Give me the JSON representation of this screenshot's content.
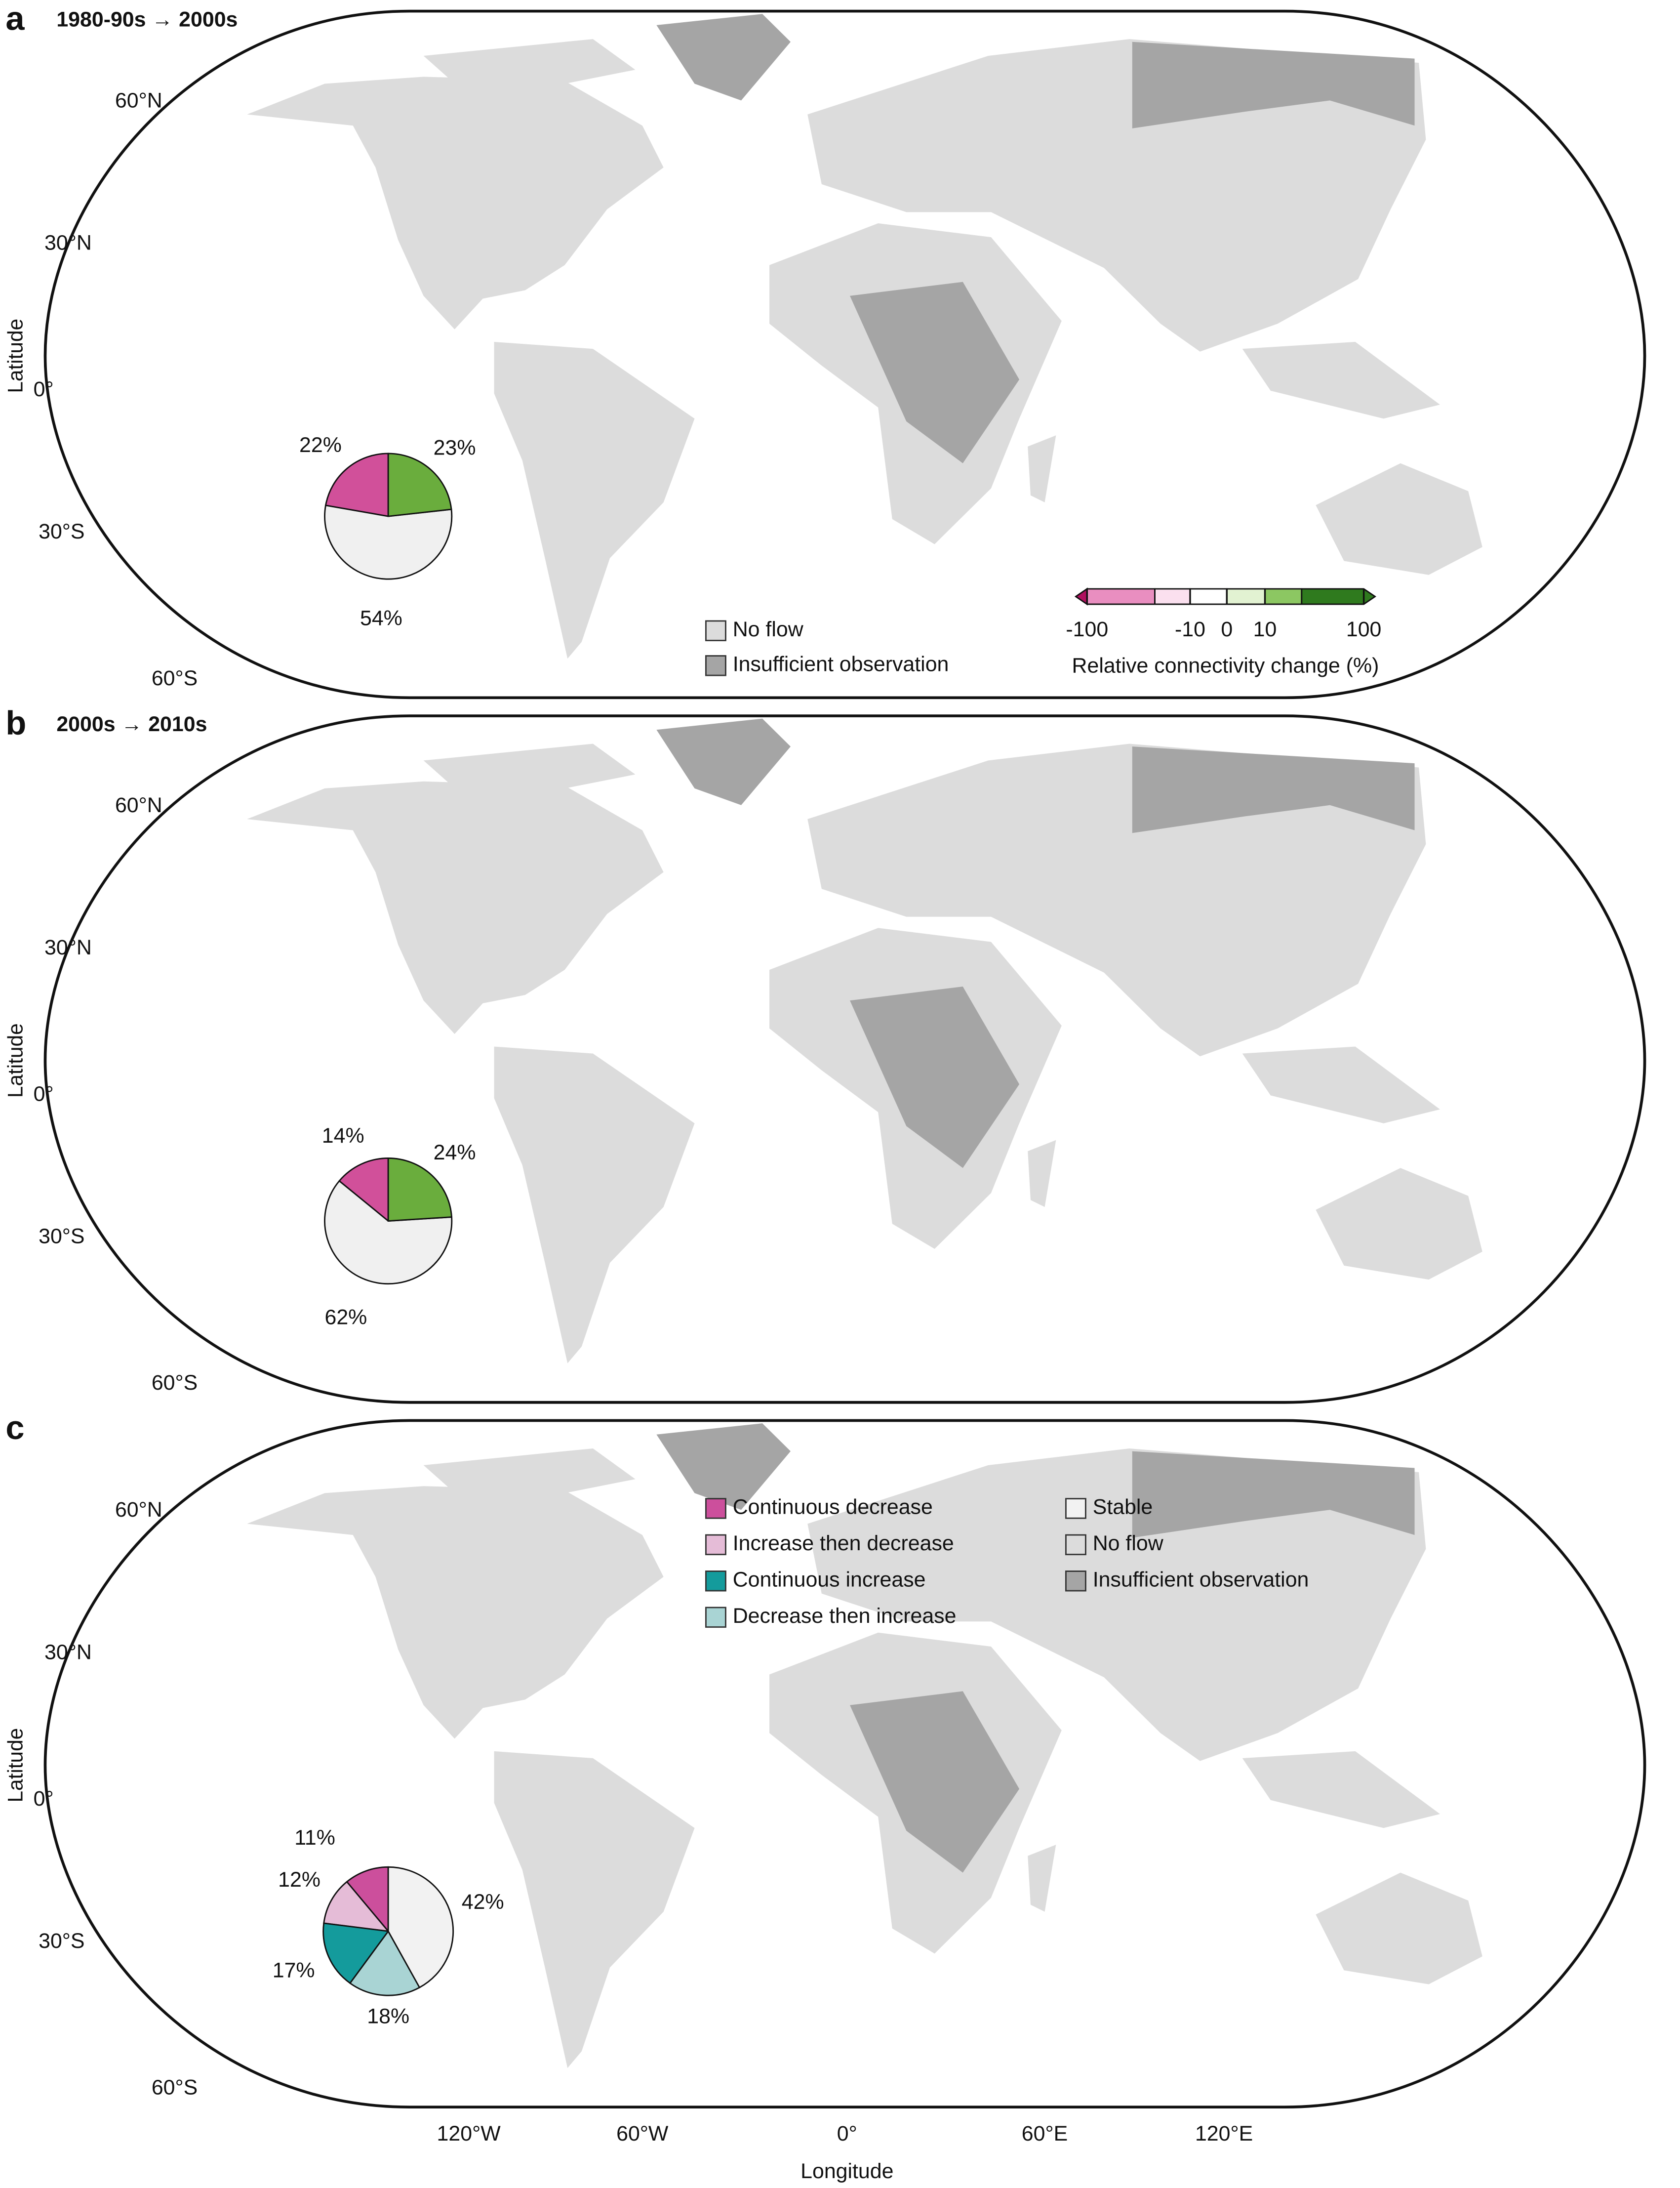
{
  "panels": [
    {
      "letter": "a",
      "title": "1980-90s → 2000s",
      "pie": {
        "type": "pie",
        "values": [
          22,
          54,
          23
        ],
        "value_labels": [
          "22%",
          "54%",
          "23%"
        ],
        "colors": [
          "#d1509a",
          "#f0f0f0",
          "#6aad3d"
        ]
      },
      "legend": [
        {
          "name": "No flow",
          "color": "#dcdcdc"
        },
        {
          "name": "Insufficient observation",
          "color": "#a5a5a5"
        }
      ],
      "colorbar": {
        "title": "Relative connectivity change (%)",
        "colors": [
          "#b0105f",
          "#e98ec0",
          "#fbe0ef",
          "#ffffff",
          "#e2f2d2",
          "#8cc762",
          "#2f7a1e"
        ],
        "ticks": [
          {
            "value": -100,
            "label": "-100"
          },
          {
            "value": -10,
            "label": "-10"
          },
          0,
          10,
          100
        ]
      }
    },
    {
      "letter": "b",
      "title": "2000s → 2010s",
      "pie": {
        "type": "pie",
        "values": [
          14,
          62,
          24
        ],
        "value_labels": [
          "14%",
          "62%",
          "24%"
        ],
        "colors": [
          "#d1509a",
          "#f0f0f0",
          "#6aad3d"
        ]
      }
    },
    {
      "letter": "c",
      "pie": {
        "type": "pie",
        "values": [
          11,
          12,
          17,
          18,
          42
        ],
        "value_labels": [
          "11%",
          "12%",
          "17%",
          "18%",
          "42%"
        ],
        "colors": [
          "#cc4f9c",
          "#e5bcd7",
          "#149b9c",
          "#a9d4d4",
          "#f2f2f2"
        ]
      },
      "legend": [
        {
          "name": "Continuous decrease",
          "color": "#cc4f9c"
        },
        {
          "name": "Increase then decrease",
          "color": "#e5bcd7"
        },
        {
          "name": "Continuous increase",
          "color": "#149b9c"
        },
        {
          "name": "Decrease then increase",
          "color": "#a9d4d4"
        },
        {
          "name": "Stable",
          "color": "#f2f2f2"
        },
        {
          "name": "No flow",
          "color": "#dcdcdc"
        },
        {
          "name": "Insufficient observation",
          "color": "#a5a5a5"
        }
      ]
    }
  ],
  "y_axis": {
    "label": "Latitude",
    "ticks": [
      "60°N",
      "30°N",
      "0°",
      "30°S",
      "60°S"
    ]
  },
  "x_axis": {
    "label": "Longitude",
    "ticks": [
      "120°W",
      "60°W",
      "0°",
      "60°E",
      "120°E"
    ]
  }
}
